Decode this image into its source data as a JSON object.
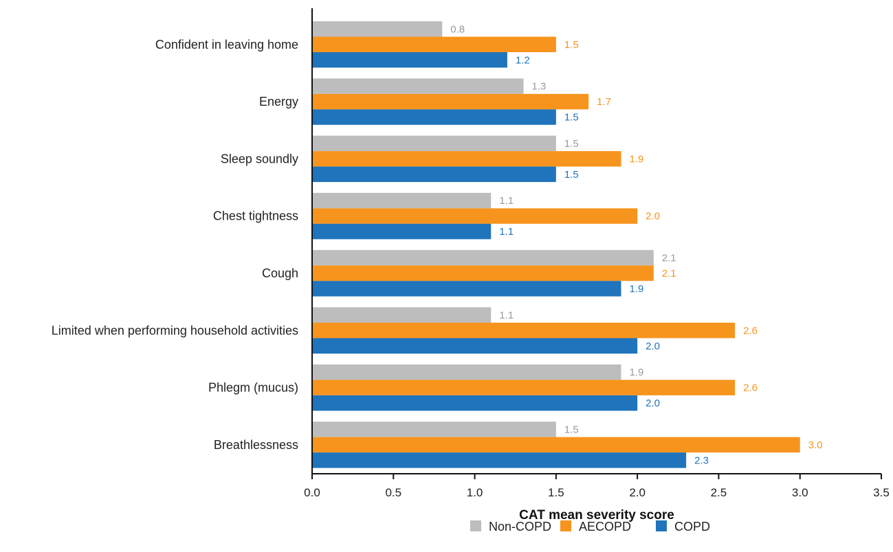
{
  "chart_data": {
    "type": "bar",
    "orientation": "horizontal",
    "categories": [
      "Confident in leaving home",
      "Energy",
      "Sleep soundly",
      "Chest tightness",
      "Cough",
      "Limited when performing household activities",
      "Phlegm (mucus)",
      "Breathlessness"
    ],
    "series": [
      {
        "name": "Non-COPD",
        "color": "#bdbdbd",
        "label_color": "#9a9a9a",
        "values": [
          0.8,
          1.3,
          1.5,
          1.1,
          2.1,
          1.1,
          1.9,
          1.5
        ],
        "labels": [
          "0.8",
          "1.3",
          "1.5",
          "1.1",
          "2.1",
          "1.1",
          "1.9",
          "1.5"
        ]
      },
      {
        "name": "AECOPD",
        "color": "#f7941d",
        "label_color": "#f7941d",
        "values": [
          1.5,
          1.7,
          1.9,
          2.0,
          2.1,
          2.6,
          2.6,
          3.0
        ],
        "labels": [
          "1.5",
          "1.7",
          "1.9",
          "2.0",
          "2.1",
          "2.6",
          "2.6",
          "3.0"
        ]
      },
      {
        "name": "COPD",
        "color": "#1f74bb",
        "label_color": "#1f74bb",
        "values": [
          1.2,
          1.5,
          1.5,
          1.1,
          1.9,
          2.0,
          2.0,
          2.3
        ],
        "labels": [
          "1.2",
          "1.5",
          "1.5",
          "1.1",
          "1.9",
          "2.0",
          "2.0",
          "2.3"
        ]
      }
    ],
    "xlabel": "CAT mean severity score",
    "ylabel": "",
    "xlim": [
      0,
      3.5
    ],
    "xticks": [
      "0.0",
      "0.5",
      "1.0",
      "1.5",
      "2.0",
      "2.5",
      "3.0",
      "3.5"
    ],
    "grid": false,
    "legend_position": "bottom-center"
  }
}
